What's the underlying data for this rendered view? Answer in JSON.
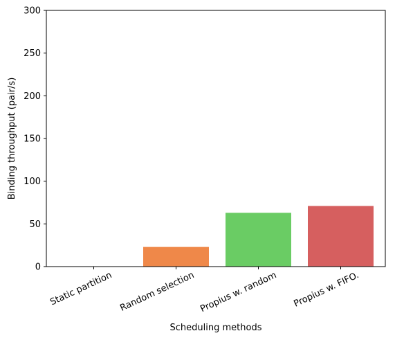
{
  "chart_data": {
    "type": "bar",
    "categories": [
      "Static partition",
      "Random selection",
      "Propius w. random",
      "Propius w. FIFO."
    ],
    "values": [
      0,
      23,
      63,
      71
    ],
    "colors": [
      "#4c72b0",
      "#ef8849",
      "#6acc64",
      "#d65f5f"
    ],
    "xlabel": "Scheduling methods",
    "ylabel": "Binding throughput (pair/s)",
    "ylim": [
      0,
      300
    ],
    "yticks": [
      0,
      50,
      100,
      150,
      200,
      250,
      300
    ],
    "grid": false,
    "legend": false
  }
}
